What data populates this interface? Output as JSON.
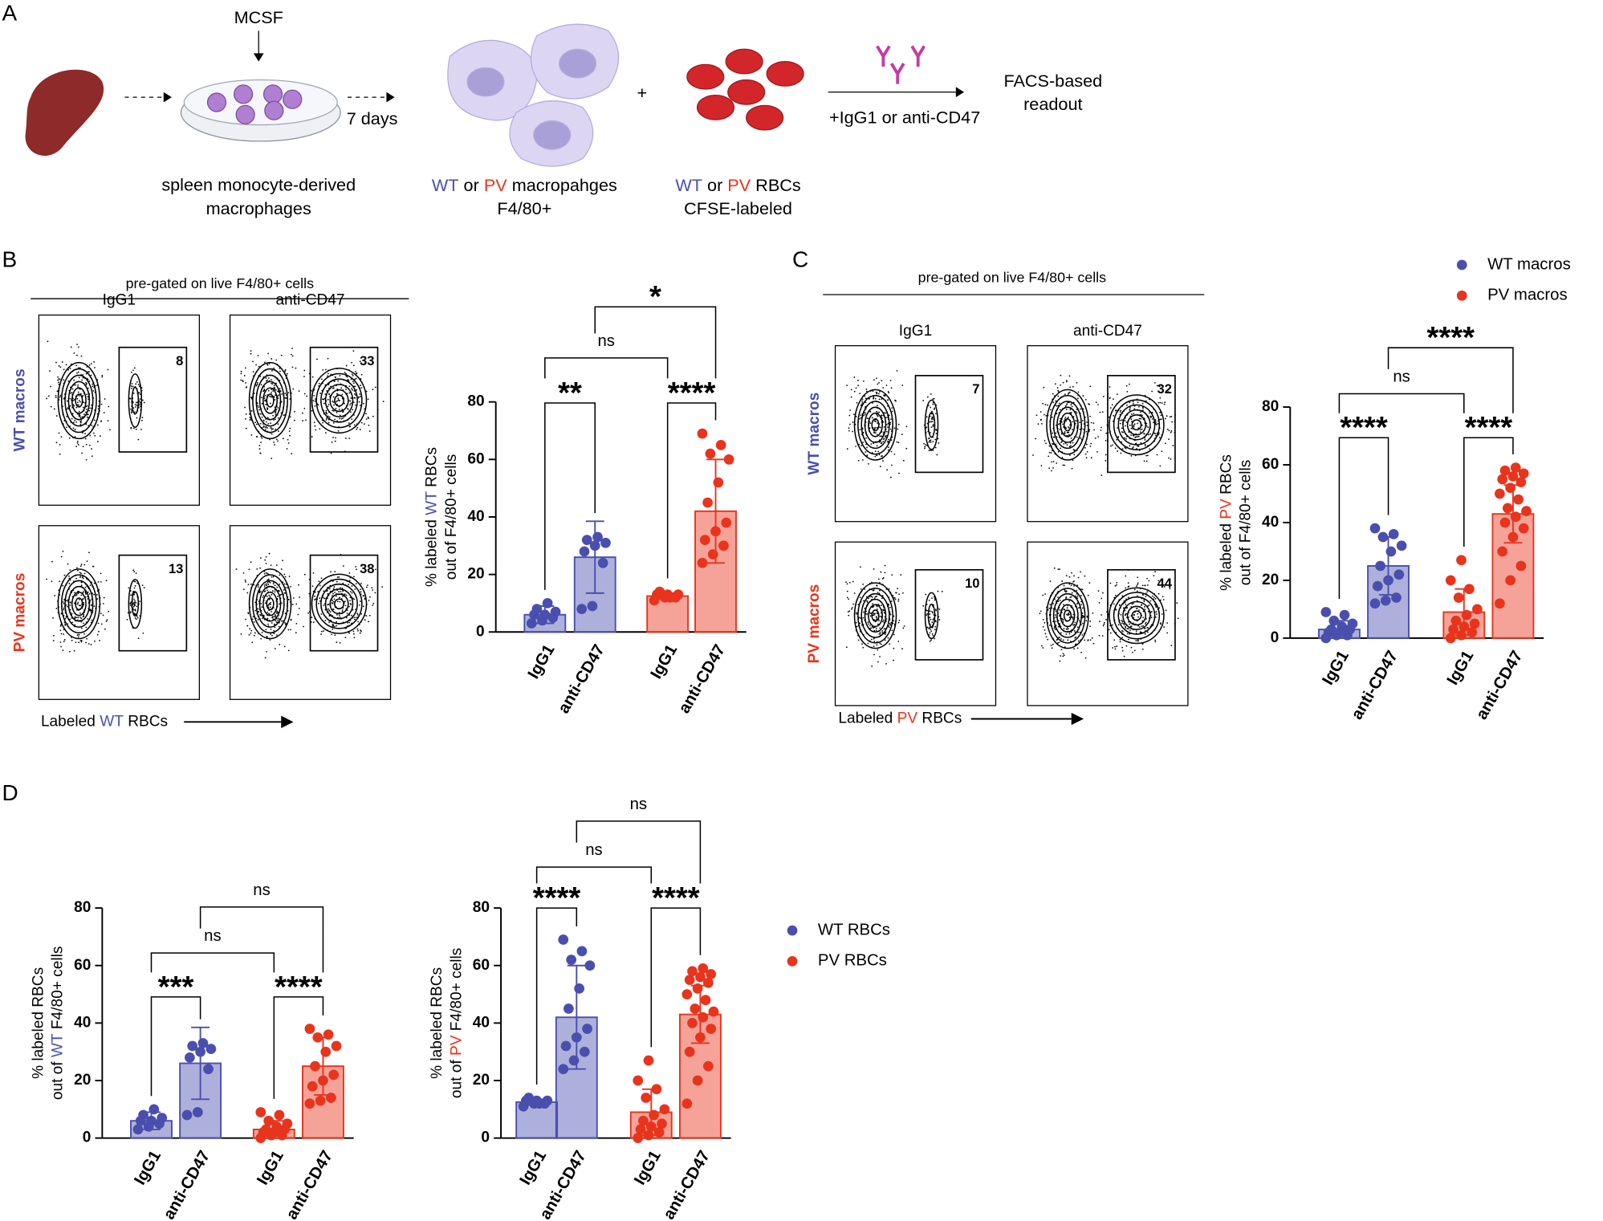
{
  "panel_letters": [
    "A",
    "B",
    "C",
    "D"
  ],
  "schematic": {
    "mcsf": "MCSF",
    "days": "7 days",
    "spleen": [
      "spleen monocyte-derived",
      "macrophages"
    ],
    "macro": [
      "WT",
      " or ",
      "PV",
      " macropahges"
    ],
    "macro2": "F4/80+",
    "plus": "+",
    "rbc": [
      "WT",
      " or ",
      "PV",
      " RBCs"
    ],
    "rbc2": "CFSE-labeled",
    "treatment": "+IgG1 or anti-CD47",
    "readout": [
      "FACS-based",
      "readout"
    ]
  },
  "flow": [
    {
      "header": "pre-gated on live F4/80+ cells",
      "columns": [
        "IgG1",
        "anti-CD47"
      ],
      "rows": [
        "WT macros",
        "PV macros"
      ],
      "gates": [
        [
          8,
          33
        ],
        [
          13,
          38
        ]
      ],
      "xlabel": [
        "Labeled ",
        "WT",
        " RBCs"
      ]
    },
    {
      "header": "pre-gated on live F4/80+ cells",
      "columns": [
        "IgG1",
        "anti-CD47"
      ],
      "rows": [
        "WT macros",
        "PV macros"
      ],
      "gates": [
        [
          7,
          32
        ],
        [
          10,
          44
        ]
      ],
      "xlabel": [
        "Labeled ",
        "PV",
        " RBCs"
      ]
    }
  ],
  "legends": [
    {
      "items": [
        {
          "name": "WT macros",
          "color": "#4a4fae"
        },
        {
          "name": "PV macros",
          "color": "#e8341c"
        }
      ]
    },
    {
      "items": [
        {
          "name": "WT RBCs",
          "color": "#4a4fae"
        },
        {
          "name": "PV RBCs",
          "color": "#e8341c"
        }
      ]
    }
  ],
  "chart_data": [
    {
      "type": "bar",
      "ylabel": [
        [
          "% labeled ",
          "WT",
          " RBCs"
        ],
        [
          "out of F4/80+ cells"
        ]
      ],
      "ylabel_highlight": "#4a4fae",
      "categories": [
        "IgG1",
        "anti-CD47",
        "IgG1",
        "anti-CD47"
      ],
      "values": [
        6,
        26,
        12.5,
        42
      ],
      "errors": [
        3,
        12.5,
        1,
        18
      ],
      "colors": [
        "#4a4fae",
        "#4a4fae",
        "#e8341c",
        "#e8341c"
      ],
      "points": [
        [
          3,
          4,
          5,
          6,
          6,
          7,
          8,
          10
        ],
        [
          8,
          9,
          24,
          28,
          30,
          31,
          32,
          33
        ],
        [
          11,
          12,
          12,
          13,
          13,
          13,
          14,
          12
        ],
        [
          24,
          27,
          30,
          32,
          35,
          38,
          45,
          52,
          60,
          62,
          65,
          69
        ]
      ],
      "ylim": [
        0,
        80
      ],
      "yticks": [
        0,
        20,
        40,
        60,
        80
      ],
      "brackets": [
        "**",
        "****",
        "ns",
        "*"
      ]
    },
    {
      "type": "bar",
      "ylabel": [
        [
          "% labeled ",
          "PV",
          " RBCs"
        ],
        [
          "out of F4/80+ cells"
        ]
      ],
      "ylabel_highlight": "#e8341c",
      "categories": [
        "IgG1",
        "anti-CD47",
        "IgG1",
        "anti-CD47"
      ],
      "values": [
        3,
        25,
        9,
        43
      ],
      "errors": [
        3,
        10,
        8,
        10
      ],
      "colors": [
        "#4a4fae",
        "#4a4fae",
        "#e8341c",
        "#e8341c"
      ],
      "points": [
        [
          0,
          1,
          1,
          2,
          2,
          3,
          3,
          4,
          5,
          6,
          8,
          9
        ],
        [
          12,
          13,
          14,
          18,
          20,
          22,
          25,
          30,
          32,
          35,
          36,
          38
        ],
        [
          0,
          1,
          2,
          3,
          4,
          5,
          6,
          8,
          10,
          14,
          17,
          20,
          27
        ],
        [
          12,
          20,
          25,
          30,
          35,
          38,
          40,
          42,
          44,
          45,
          48,
          50,
          52,
          54,
          55,
          56,
          57,
          58,
          59
        ]
      ],
      "ylim": [
        0,
        80
      ],
      "yticks": [
        0,
        20,
        40,
        60,
        80
      ],
      "brackets": [
        "****",
        "****",
        "ns",
        "****"
      ]
    },
    {
      "type": "bar",
      "ylabel": [
        [
          "% labeled RBCs"
        ],
        [
          "out of ",
          "WT",
          " F4/80+ cells"
        ]
      ],
      "ylabel_highlight": "#4a4fae",
      "categories": [
        "IgG1",
        "anti-CD47",
        "IgG1",
        "anti-CD47"
      ],
      "values": [
        6,
        26,
        3,
        25
      ],
      "errors": [
        3,
        12.5,
        3,
        10
      ],
      "colors": [
        "#4a4fae",
        "#4a4fae",
        "#e8341c",
        "#e8341c"
      ],
      "points": [
        [
          3,
          4,
          5,
          6,
          6,
          7,
          8,
          10
        ],
        [
          8,
          9,
          24,
          28,
          30,
          31,
          32,
          33
        ],
        [
          0,
          1,
          1,
          2,
          2,
          3,
          3,
          4,
          5,
          6,
          8,
          9
        ],
        [
          12,
          13,
          14,
          18,
          20,
          22,
          25,
          30,
          32,
          35,
          36,
          38
        ]
      ],
      "ylim": [
        0,
        80
      ],
      "yticks": [
        0,
        20,
        40,
        60,
        80
      ],
      "brackets": [
        "***",
        "****",
        "ns",
        "ns"
      ]
    },
    {
      "type": "bar",
      "ylabel": [
        [
          "% labeled RBCs"
        ],
        [
          "out of ",
          "PV",
          " F4/80+ cells"
        ]
      ],
      "ylabel_highlight": "#e8341c",
      "categories": [
        "IgG1",
        "anti-CD47",
        "IgG1",
        "anti-CD47"
      ],
      "values": [
        12.5,
        42,
        9,
        43
      ],
      "errors": [
        1,
        18,
        8,
        10
      ],
      "colors": [
        "#4a4fae",
        "#4a4fae",
        "#e8341c",
        "#e8341c"
      ],
      "points": [
        [
          11,
          12,
          12,
          13,
          13,
          13,
          14,
          12
        ],
        [
          24,
          27,
          30,
          32,
          35,
          38,
          45,
          52,
          60,
          62,
          65,
          69
        ],
        [
          0,
          1,
          2,
          3,
          4,
          5,
          6,
          8,
          10,
          14,
          17,
          20,
          27
        ],
        [
          12,
          20,
          25,
          30,
          35,
          38,
          40,
          42,
          44,
          45,
          48,
          50,
          52,
          54,
          55,
          56,
          57,
          58,
          59
        ]
      ],
      "ylim": [
        0,
        80
      ],
      "yticks": [
        0,
        20,
        40,
        60,
        80
      ],
      "brackets": [
        "****",
        "****",
        "ns",
        "ns"
      ]
    }
  ]
}
